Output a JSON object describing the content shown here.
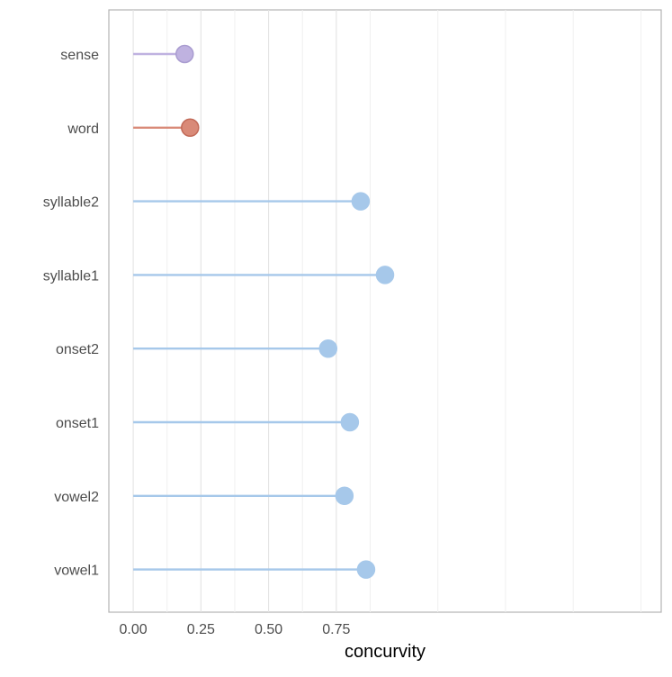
{
  "chart_data": {
    "type": "lollipop",
    "title": "",
    "xlabel": "concurvity",
    "ylabel": "",
    "xlim": [
      -0.09,
      1.95
    ],
    "x_ticks": [
      0,
      0.25,
      0.5,
      0.75
    ],
    "x_tick_labels": [
      "0.00",
      "0.25",
      "0.50",
      "0.75"
    ],
    "grid": true,
    "legend": "none",
    "categories": [
      "sense",
      "word",
      "syllable2",
      "syllable1",
      "onset2",
      "onset1",
      "vowel2",
      "vowel1"
    ],
    "values": [
      0.19,
      0.21,
      0.84,
      0.93,
      0.72,
      0.8,
      0.78,
      0.86
    ],
    "colors": [
      "#bfb2e0",
      "#d98a78",
      "#a6c8ea",
      "#a6c8ea",
      "#a6c8ea",
      "#a6c8ea",
      "#a6c8ea",
      "#a6c8ea"
    ],
    "point_stroke_colors": [
      "#a99cd0",
      "#c26a58",
      "#a6c8ea",
      "#a6c8ea",
      "#a6c8ea",
      "#a6c8ea",
      "#a6c8ea",
      "#a6c8ea"
    ]
  }
}
